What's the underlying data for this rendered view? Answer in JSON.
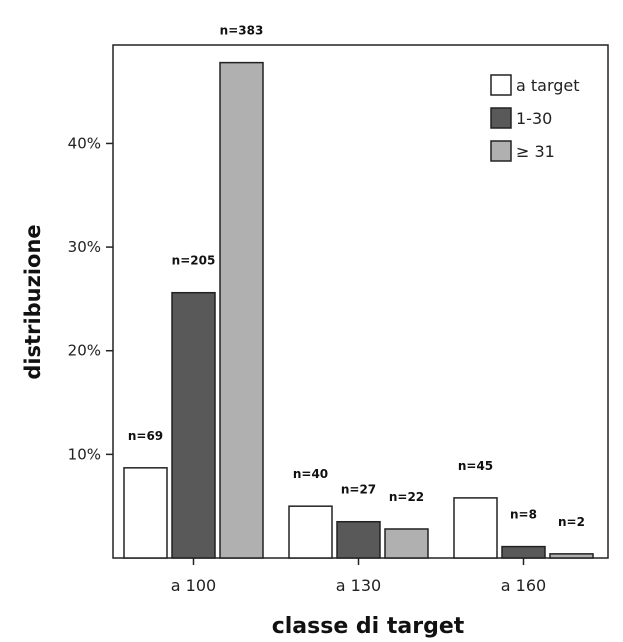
{
  "chart_data": {
    "type": "bar",
    "title": "",
    "xlabel": "classe di target",
    "ylabel": "distribuzione",
    "categories": [
      "a 100",
      "a 130",
      "a 160"
    ],
    "series": [
      {
        "name": "a target",
        "values": [
          8.7,
          5.0,
          5.8
        ],
        "counts": [
          "n=69",
          "n=40",
          "n=45"
        ],
        "color": "#ffffff"
      },
      {
        "name": "1-30",
        "values": [
          25.6,
          3.5,
          1.1
        ],
        "counts": [
          "n=205",
          "n=27",
          "n=8"
        ],
        "color": "#595959"
      },
      {
        "name": "≥ 31",
        "values": [
          47.8,
          2.8,
          0.4
        ],
        "counts": [
          "n=383",
          "n=22",
          "n=2"
        ],
        "color": "#b0b0b0"
      }
    ],
    "yticks": [
      "10%",
      "20%",
      "30%",
      "40%"
    ],
    "ytick_values": [
      10,
      20,
      30,
      40
    ],
    "ylim": [
      0,
      49.5
    ],
    "grid": false,
    "legend_position": "top-right"
  }
}
